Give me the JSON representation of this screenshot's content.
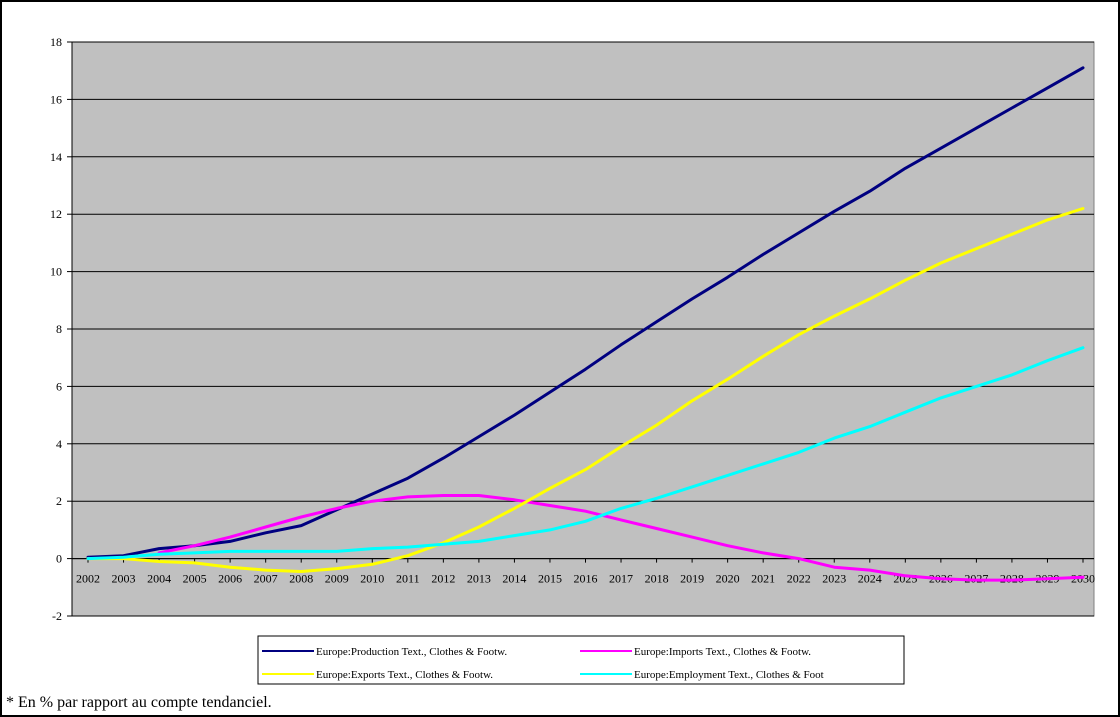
{
  "footnote": "* En % par rapport au compte tendanciel.",
  "chart_data": {
    "type": "line",
    "title": "",
    "xlabel": "",
    "ylabel": "",
    "ylim": [
      -2,
      18
    ],
    "yticks": [
      -2,
      0,
      2,
      4,
      6,
      8,
      10,
      12,
      14,
      16,
      18
    ],
    "grid": true,
    "legend_position": "bottom",
    "plot_background": "#c0c0c0",
    "categories": [
      "2002",
      "2003",
      "2004",
      "2005",
      "2006",
      "2007",
      "2008",
      "2009",
      "2010",
      "2011",
      "2012",
      "2013",
      "2014",
      "2015",
      "2016",
      "2017",
      "2018",
      "2019",
      "2020",
      "2021",
      "2022",
      "2023",
      "2024",
      "2025",
      "2026",
      "2027",
      "2028",
      "2029",
      "2030"
    ],
    "series": [
      {
        "name": "Europe:Production Text., Clothes & Footw.",
        "color": "#000080",
        "values": [
          0.05,
          0.1,
          0.35,
          0.45,
          0.6,
          0.9,
          1.15,
          1.7,
          2.25,
          2.8,
          3.5,
          4.25,
          5.0,
          5.8,
          6.6,
          7.45,
          8.25,
          9.05,
          9.8,
          10.6,
          11.35,
          12.1,
          12.8,
          13.6,
          14.3,
          15.0,
          15.7,
          16.4,
          17.1
        ]
      },
      {
        "name": "Europe:Imports Text., Clothes & Footw.",
        "color": "#ff00ff",
        "values": [
          null,
          null,
          0.2,
          0.45,
          0.75,
          1.1,
          1.45,
          1.75,
          2.0,
          2.15,
          2.2,
          2.2,
          2.05,
          1.85,
          1.65,
          1.35,
          1.05,
          0.75,
          0.45,
          0.2,
          0.0,
          -0.3,
          -0.4,
          -0.6,
          -0.7,
          -0.75,
          -0.75,
          -0.7,
          -0.65
        ]
      },
      {
        "name": "Europe:Exports Text., Clothes & Footw.",
        "color": "#ffff00",
        "values": [
          0.0,
          0.0,
          -0.1,
          -0.15,
          -0.3,
          -0.4,
          -0.45,
          -0.35,
          -0.2,
          0.1,
          0.55,
          1.1,
          1.75,
          2.45,
          3.1,
          3.9,
          4.65,
          5.5,
          6.25,
          7.05,
          7.8,
          8.45,
          9.05,
          9.7,
          10.3,
          10.8,
          11.3,
          11.8,
          12.2
        ]
      },
      {
        "name": "Europe:Employment Text., Clothes & Foot",
        "color": "#00ffff",
        "values": [
          0.0,
          0.05,
          0.15,
          0.2,
          0.25,
          0.25,
          0.25,
          0.25,
          0.35,
          0.4,
          0.5,
          0.6,
          0.8,
          1.0,
          1.3,
          1.75,
          2.1,
          2.5,
          2.9,
          3.3,
          3.7,
          4.2,
          4.6,
          5.1,
          5.6,
          6.0,
          6.4,
          6.9,
          7.35
        ]
      }
    ]
  }
}
